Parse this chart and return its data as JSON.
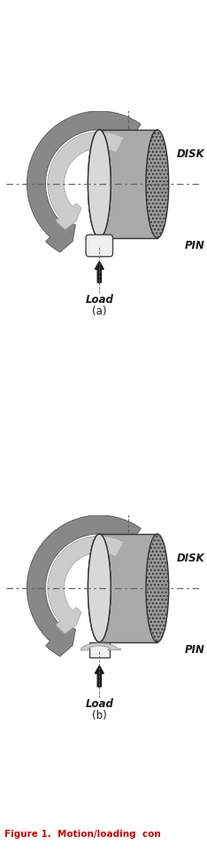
{
  "bg_color": "#ffffff",
  "disk_texture_color": "#888888",
  "disk_face_color": "#d8d8d8",
  "disk_edge_color": "#333333",
  "arrow_outer_color": "#888888",
  "arrow_inner_color": "#cccccc",
  "arrow_edge_color": "#555555",
  "pin_color": "#f0f0f0",
  "pin_edge_color": "#444444",
  "load_arrow_color": "#1a1a1a",
  "dash_color": "#666666",
  "text_color": "#1a1a1a",
  "label_disk": "DISK",
  "label_pin": "PIN",
  "label_load": "Load",
  "label_a": "(a)",
  "label_b": "(b)",
  "fig_caption": "Figure 1.  Motion/loading  con",
  "caption_color": "#cc0000"
}
